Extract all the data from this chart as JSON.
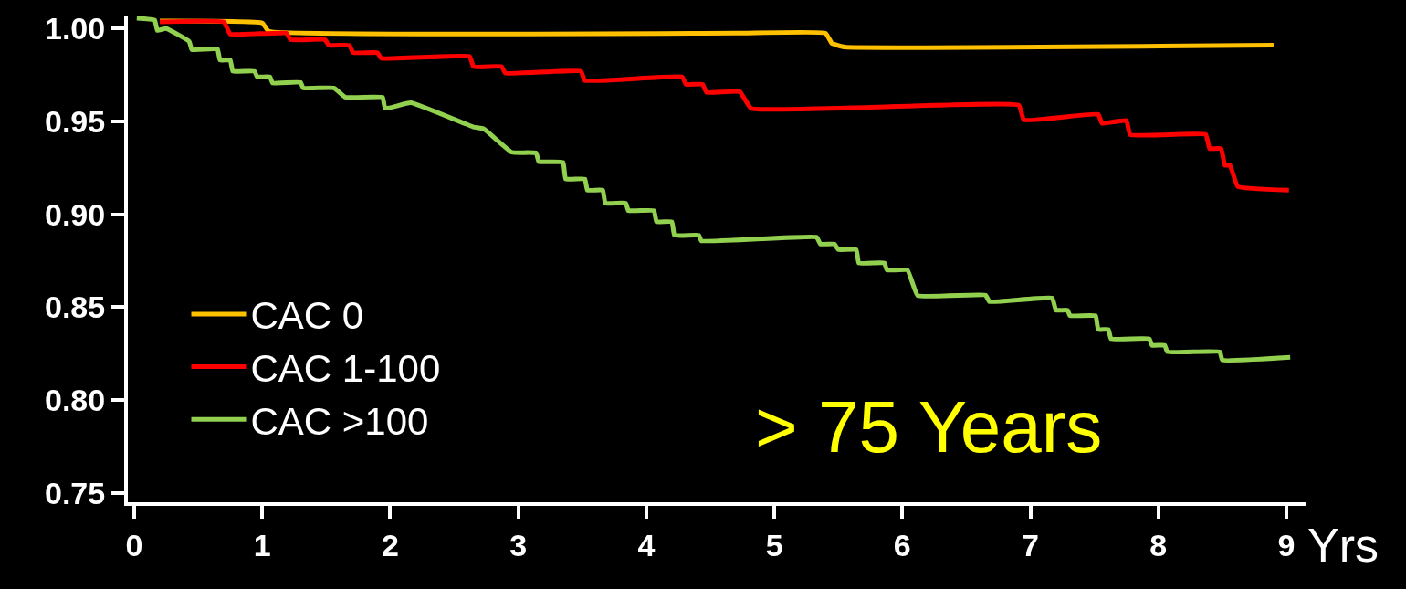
{
  "chart_data": {
    "type": "line",
    "xlabel": "Yrs",
    "xlim": [
      -0.05,
      9.15
    ],
    "xticks": [
      0,
      1,
      2,
      3,
      4,
      5,
      6,
      7,
      8,
      9
    ],
    "ylim": [
      0.745,
      1.007
    ],
    "yticks": [
      {
        "value": 0.75,
        "label": "0.75"
      },
      {
        "value": 0.8,
        "label": "0.80"
      },
      {
        "value": 0.85,
        "label": "0.85"
      },
      {
        "value": 0.9,
        "label": "0.90"
      },
      {
        "value": 0.95,
        "label": "0.95"
      },
      {
        "value": 1.0,
        "label": "1.00"
      }
    ],
    "grid": false,
    "legend": "left",
    "marker": "none",
    "line_style": "solid",
    "annotations": [
      "> 75 Years"
    ],
    "series": [
      {
        "name": "CAC 0",
        "color": "#ffc000",
        "x": [
          0.2,
          1.0,
          1.05,
          4.7,
          5.4,
          5.45,
          5.55,
          8.9
        ],
        "values": [
          1.004,
          1.003,
          0.9985,
          0.9975,
          0.9975,
          0.992,
          0.99,
          0.991
        ]
      },
      {
        "name": "CAC 1-100",
        "color": "#ff0000",
        "x": [
          0.2,
          0.7,
          0.75,
          1.19,
          1.22,
          1.49,
          1.52,
          1.68,
          1.71,
          1.9,
          1.93,
          2.62,
          2.65,
          2.87,
          2.9,
          3.49,
          3.52,
          4.28,
          4.31,
          4.44,
          4.47,
          4.73,
          4.82,
          6.91,
          6.95,
          7.53,
          7.56,
          7.75,
          7.78,
          8.37,
          8.4,
          8.49,
          8.52,
          8.56,
          8.62,
          9.02
        ],
        "values": [
          1.0035,
          1.0035,
          0.997,
          0.9975,
          0.994,
          0.994,
          0.991,
          0.991,
          0.987,
          0.987,
          0.984,
          0.985,
          0.9795,
          0.9795,
          0.976,
          0.977,
          0.972,
          0.974,
          0.97,
          0.97,
          0.9657,
          0.966,
          0.957,
          0.9587,
          0.9508,
          0.9538,
          0.949,
          0.9505,
          0.9428,
          0.943,
          0.9354,
          0.9354,
          0.9264,
          0.9264,
          0.915,
          0.913
        ]
      },
      {
        "name": "CAC >100",
        "color": "#92d050",
        "x": [
          0.02,
          0.16,
          0.18,
          0.25,
          0.43,
          0.45,
          0.65,
          0.67,
          0.75,
          0.77,
          0.94,
          0.96,
          1.06,
          1.08,
          1.3,
          1.32,
          1.56,
          1.65,
          1.94,
          1.96,
          2.16,
          2.65,
          2.73,
          2.95,
          3.14,
          3.16,
          3.35,
          3.37,
          3.52,
          3.54,
          3.66,
          3.68,
          3.84,
          3.86,
          4.06,
          4.08,
          4.2,
          4.22,
          4.41,
          4.43,
          5.33,
          5.36,
          5.47,
          5.5,
          5.64,
          5.66,
          5.86,
          5.88,
          6.04,
          6.12,
          6.65,
          6.68,
          7.17,
          7.2,
          7.29,
          7.31,
          7.51,
          7.53,
          7.61,
          7.63,
          7.93,
          7.95,
          8.05,
          8.07,
          8.48,
          8.5,
          9.03
        ],
        "values": [
          1.0055,
          1.0045,
          0.999,
          1.0,
          0.993,
          0.9886,
          0.989,
          0.983,
          0.983,
          0.977,
          0.977,
          0.974,
          0.974,
          0.9707,
          0.971,
          0.968,
          0.968,
          0.963,
          0.963,
          0.957,
          0.96,
          0.947,
          0.946,
          0.9334,
          0.933,
          0.9284,
          0.928,
          0.919,
          0.919,
          0.913,
          0.913,
          0.906,
          0.906,
          0.902,
          0.902,
          0.896,
          0.896,
          0.8887,
          0.8887,
          0.8857,
          0.8877,
          0.884,
          0.884,
          0.881,
          0.881,
          0.8738,
          0.8738,
          0.87,
          0.87,
          0.8563,
          0.8565,
          0.853,
          0.8549,
          0.8484,
          0.8484,
          0.8454,
          0.8454,
          0.838,
          0.838,
          0.833,
          0.833,
          0.8295,
          0.8295,
          0.826,
          0.826,
          0.8216,
          0.823
        ]
      }
    ]
  }
}
